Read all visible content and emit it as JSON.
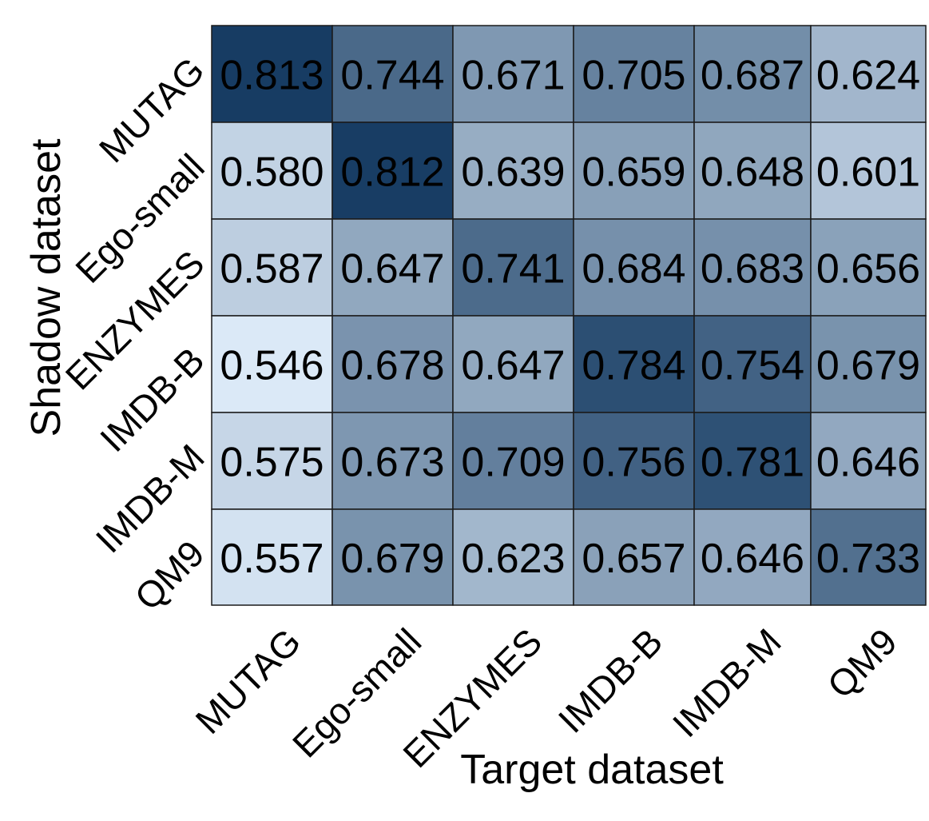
{
  "chart_data": {
    "type": "heatmap",
    "xlabel": "Target dataset",
    "ylabel": "Shadow dataset",
    "x_categories": [
      "MUTAG",
      "Ego-small",
      "ENZYMES",
      "IMDB-B",
      "IMDB-M",
      "QM9"
    ],
    "y_categories": [
      "MUTAG",
      "Ego-small",
      "ENZYMES",
      "IMDB-B",
      "IMDB-M",
      "QM9"
    ],
    "values": [
      [
        0.813,
        0.744,
        0.671,
        0.705,
        0.687,
        0.624
      ],
      [
        0.58,
        0.812,
        0.639,
        0.659,
        0.648,
        0.601
      ],
      [
        0.587,
        0.647,
        0.741,
        0.684,
        0.683,
        0.656
      ],
      [
        0.546,
        0.678,
        0.647,
        0.784,
        0.754,
        0.679
      ],
      [
        0.575,
        0.673,
        0.709,
        0.756,
        0.781,
        0.646
      ],
      [
        0.557,
        0.679,
        0.623,
        0.657,
        0.646,
        0.733
      ]
    ],
    "value_labels": [
      [
        "0.813",
        "0.744",
        "0.671",
        "0.705",
        "0.687",
        "0.624"
      ],
      [
        "0.580",
        "0.812",
        "0.639",
        "0.659",
        "0.648",
        "0.601"
      ],
      [
        "0.587",
        "0.647",
        "0.741",
        "0.684",
        "0.683",
        "0.656"
      ],
      [
        "0.546",
        "0.678",
        "0.647",
        "0.784",
        "0.754",
        "0.679"
      ],
      [
        "0.575",
        "0.673",
        "0.709",
        "0.756",
        "0.781",
        "0.646"
      ],
      [
        "0.557",
        "0.679",
        "0.623",
        "0.657",
        "0.646",
        "0.733"
      ]
    ],
    "colormap": {
      "low": "#dbe9f7",
      "high": "#173c63"
    },
    "value_range": [
      0.546,
      0.813
    ],
    "grid": true,
    "legend": "none"
  }
}
